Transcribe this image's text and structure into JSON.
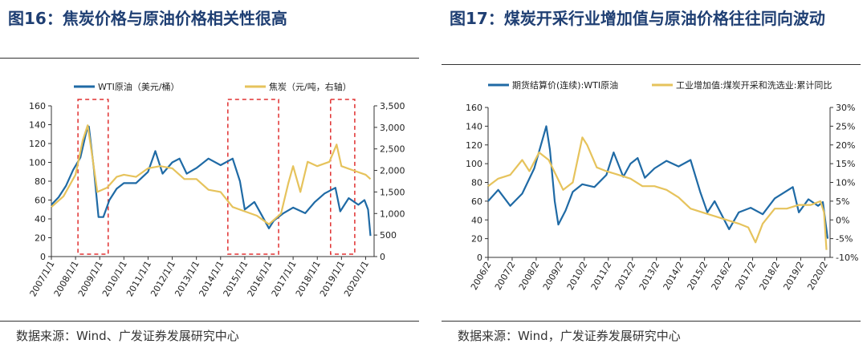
{
  "left": {
    "title": "图16：焦炭价格与原油价格相关性很高",
    "source": "数据来源：Wind、广发证券发展研究中心",
    "chart_data": {
      "type": "line",
      "title": "图16：焦炭价格与原油价格相关性很高",
      "xlabel": "",
      "ylabel": "",
      "ylim": [
        0,
        160
      ],
      "y2lim": [
        0,
        3500
      ],
      "yticks": [
        "0",
        "20",
        "40",
        "60",
        "80",
        "100",
        "120",
        "140",
        "160"
      ],
      "y2ticks": [
        "0",
        "500",
        "1,000",
        "1,500",
        "2,000",
        "2,500",
        "3,000",
        "3,500"
      ],
      "x_tick_labels": [
        "2007/1/1",
        "2008/1/1",
        "2009/1/1",
        "2010/1/1",
        "2011/1/1",
        "2012/1/1",
        "2013/1/1",
        "2014/1/1",
        "2015/1/1",
        "2016/1/1",
        "2017/1/1",
        "2018/1/1",
        "2019/1/1",
        "2020/1/1"
      ],
      "legend_position": "top",
      "series": [
        {
          "name": "WTI原油（美元/桶）",
          "axis": "left",
          "color": "#1f6aa5",
          "points": [
            [
              2007.0,
              55
            ],
            [
              2007.3,
              63
            ],
            [
              2007.6,
              75
            ],
            [
              2007.9,
              92
            ],
            [
              2008.2,
              105
            ],
            [
              2008.45,
              133
            ],
            [
              2008.55,
              138
            ],
            [
              2008.75,
              95
            ],
            [
              2008.95,
              42
            ],
            [
              2009.15,
              42
            ],
            [
              2009.4,
              60
            ],
            [
              2009.7,
              72
            ],
            [
              2010.0,
              78
            ],
            [
              2010.5,
              78
            ],
            [
              2011.0,
              90
            ],
            [
              2011.3,
              112
            ],
            [
              2011.6,
              88
            ],
            [
              2012.0,
              100
            ],
            [
              2012.3,
              104
            ],
            [
              2012.6,
              88
            ],
            [
              2013.0,
              94
            ],
            [
              2013.5,
              104
            ],
            [
              2014.0,
              97
            ],
            [
              2014.5,
              104
            ],
            [
              2014.8,
              80
            ],
            [
              2015.0,
              50
            ],
            [
              2015.4,
              58
            ],
            [
              2015.7,
              44
            ],
            [
              2016.0,
              30
            ],
            [
              2016.2,
              38
            ],
            [
              2016.6,
              46
            ],
            [
              2017.0,
              52
            ],
            [
              2017.5,
              46
            ],
            [
              2017.9,
              58
            ],
            [
              2018.3,
              67
            ],
            [
              2018.75,
              73
            ],
            [
              2018.95,
              48
            ],
            [
              2019.3,
              62
            ],
            [
              2019.7,
              55
            ],
            [
              2019.95,
              60
            ],
            [
              2020.1,
              50
            ],
            [
              2020.2,
              22
            ]
          ]
        },
        {
          "name": "焦炭（元/吨，右轴）",
          "axis": "right",
          "color": "#e6c35c",
          "points": [
            [
              2007.0,
              1150
            ],
            [
              2007.5,
              1400
            ],
            [
              2008.0,
              1900
            ],
            [
              2008.3,
              2700
            ],
            [
              2008.5,
              3050
            ],
            [
              2008.7,
              2300
            ],
            [
              2008.9,
              1500
            ],
            [
              2009.3,
              1600
            ],
            [
              2009.7,
              1850
            ],
            [
              2010.0,
              1900
            ],
            [
              2010.5,
              1850
            ],
            [
              2011.0,
              2050
            ],
            [
              2011.5,
              2100
            ],
            [
              2012.0,
              2050
            ],
            [
              2012.5,
              1800
            ],
            [
              2013.0,
              1800
            ],
            [
              2013.5,
              1550
            ],
            [
              2014.0,
              1500
            ],
            [
              2014.5,
              1150
            ],
            [
              2015.0,
              1050
            ],
            [
              2015.5,
              950
            ],
            [
              2016.0,
              750
            ],
            [
              2016.5,
              1000
            ],
            [
              2016.8,
              1700
            ],
            [
              2017.0,
              2100
            ],
            [
              2017.3,
              1500
            ],
            [
              2017.6,
              2200
            ],
            [
              2018.0,
              2100
            ],
            [
              2018.5,
              2200
            ],
            [
              2018.8,
              2600
            ],
            [
              2019.0,
              2100
            ],
            [
              2019.5,
              2000
            ],
            [
              2020.0,
              1900
            ],
            [
              2020.2,
              1800
            ]
          ]
        }
      ],
      "highlight_ranges": [
        [
          2008.1,
          2009.35
        ],
        [
          2014.3,
          2016.4
        ],
        [
          2018.55,
          2019.55
        ]
      ]
    }
  },
  "right": {
    "title": "图17：煤炭开采行业增加值与原油价格往往同向波动",
    "source": "数据来源：Wind，广发证券发展研究中心",
    "chart_data": {
      "type": "line",
      "title": "图17：煤炭开采行业增加值与原油价格往往同向波动",
      "xlabel": "",
      "ylabel": "",
      "ylim": [
        0,
        160
      ],
      "y2lim": [
        -10,
        30
      ],
      "yticks": [
        "0",
        "20",
        "40",
        "60",
        "80",
        "100",
        "120",
        "140",
        "160"
      ],
      "y2ticks": [
        "-10%",
        "-5%",
        "0%",
        "5%",
        "10%",
        "15%",
        "20%",
        "25%",
        "30%"
      ],
      "x_tick_labels": [
        "2006/2",
        "2007/2",
        "2008/2",
        "2009/2",
        "2010/2",
        "2011/2",
        "2012/2",
        "2013/2",
        "2014/2",
        "2015/2",
        "2016/2",
        "2017/2",
        "2018/2",
        "2019/2",
        "2020/2"
      ],
      "legend_position": "top",
      "series": [
        {
          "name": "期货结算价(连续):WTI原油",
          "axis": "left",
          "color": "#1f6aa5",
          "points": [
            [
              2006.08,
              60
            ],
            [
              2006.5,
              72
            ],
            [
              2007.0,
              55
            ],
            [
              2007.5,
              68
            ],
            [
              2008.0,
              95
            ],
            [
              2008.5,
              140
            ],
            [
              2008.65,
              115
            ],
            [
              2008.85,
              60
            ],
            [
              2009.0,
              35
            ],
            [
              2009.3,
              50
            ],
            [
              2009.6,
              70
            ],
            [
              2010.0,
              78
            ],
            [
              2010.5,
              75
            ],
            [
              2011.0,
              88
            ],
            [
              2011.3,
              112
            ],
            [
              2011.7,
              86
            ],
            [
              2012.0,
              100
            ],
            [
              2012.3,
              106
            ],
            [
              2012.6,
              85
            ],
            [
              2013.0,
              95
            ],
            [
              2013.5,
              103
            ],
            [
              2014.0,
              97
            ],
            [
              2014.5,
              104
            ],
            [
              2014.9,
              70
            ],
            [
              2015.2,
              48
            ],
            [
              2015.5,
              60
            ],
            [
              2015.8,
              45
            ],
            [
              2016.1,
              30
            ],
            [
              2016.5,
              48
            ],
            [
              2017.0,
              53
            ],
            [
              2017.5,
              46
            ],
            [
              2018.0,
              63
            ],
            [
              2018.75,
              75
            ],
            [
              2019.0,
              48
            ],
            [
              2019.4,
              62
            ],
            [
              2019.8,
              55
            ],
            [
              2020.0,
              59
            ],
            [
              2020.2,
              20
            ]
          ]
        },
        {
          "name": "工业增加值:煤炭开采和洗选业:累计同比",
          "axis": "right",
          "color": "#e6c35c",
          "points": [
            [
              2006.08,
              9
            ],
            [
              2006.5,
              11
            ],
            [
              2007.0,
              12
            ],
            [
              2007.5,
              16
            ],
            [
              2007.8,
              13
            ],
            [
              2008.2,
              18
            ],
            [
              2008.6,
              16
            ],
            [
              2008.9,
              12
            ],
            [
              2009.2,
              8
            ],
            [
              2009.6,
              10
            ],
            [
              2010.0,
              22
            ],
            [
              2010.2,
              20
            ],
            [
              2010.6,
              14
            ],
            [
              2011.0,
              13
            ],
            [
              2011.5,
              12
            ],
            [
              2012.0,
              11
            ],
            [
              2012.5,
              9
            ],
            [
              2013.0,
              9
            ],
            [
              2013.5,
              8
            ],
            [
              2014.0,
              6
            ],
            [
              2014.5,
              3
            ],
            [
              2015.0,
              2
            ],
            [
              2015.5,
              1
            ],
            [
              2016.0,
              0
            ],
            [
              2016.5,
              -1
            ],
            [
              2016.9,
              -2
            ],
            [
              2017.2,
              -6
            ],
            [
              2017.5,
              -1
            ],
            [
              2018.0,
              3
            ],
            [
              2018.5,
              3
            ],
            [
              2019.0,
              4
            ],
            [
              2019.5,
              4
            ],
            [
              2019.9,
              5
            ],
            [
              2020.05,
              2
            ],
            [
              2020.15,
              -8
            ]
          ]
        }
      ]
    }
  }
}
